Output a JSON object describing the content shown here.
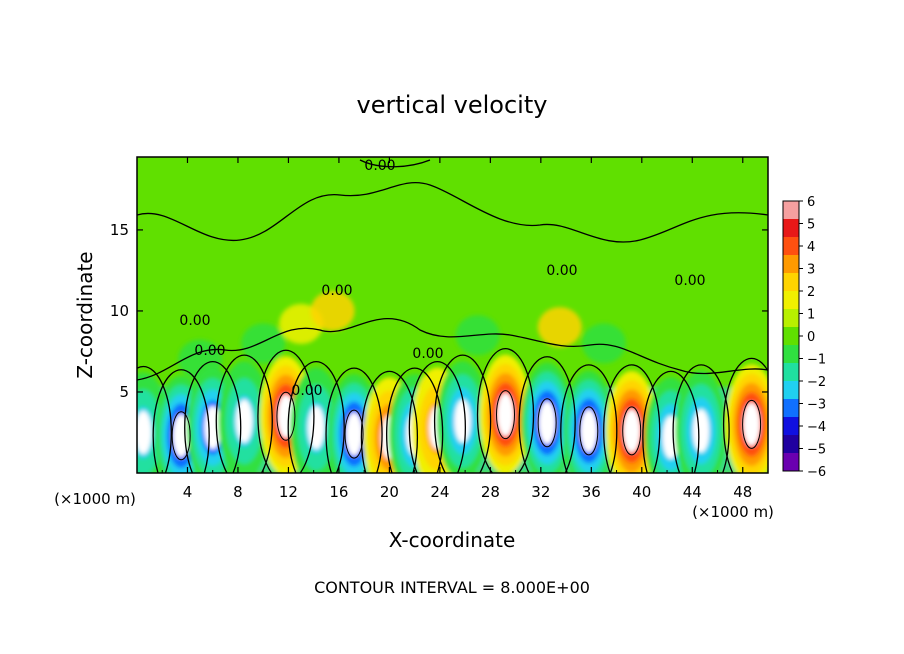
{
  "chart_data": {
    "type": "heatmap",
    "title": "vertical velocity",
    "xlabel": "X-coordinate",
    "ylabel": "Z-coordinate",
    "x_unit_label_left": "(×1000 m)",
    "x_unit_label_right": "(×1000 m)",
    "footer": "CONTOUR INTERVAL = 8.000E+00",
    "xlim": [
      0,
      50
    ],
    "ylim": [
      0,
      19.5
    ],
    "x_ticks": [
      4,
      8,
      12,
      16,
      20,
      24,
      28,
      32,
      36,
      40,
      44,
      48
    ],
    "x_tick_labels": [
      "4",
      "8",
      "12",
      "16",
      "20",
      "24",
      "28",
      "32",
      "36",
      "40",
      "44",
      "48"
    ],
    "y_ticks": [
      5,
      10,
      15
    ],
    "y_tick_labels": [
      "5",
      "10",
      "15"
    ],
    "colorbar": {
      "ticks": [
        6,
        5,
        4,
        3,
        2,
        1,
        0,
        -1,
        -2,
        -3,
        -4,
        -5,
        -6
      ],
      "tick_labels": [
        "6",
        "5",
        "4",
        "3",
        "2",
        "1",
        "0",
        "−1",
        "−2",
        "−3",
        "−4",
        "−5",
        "−6"
      ],
      "colors": [
        "#f6a0a0",
        "#e81818",
        "#ff5010",
        "#ff9a00",
        "#ffd400",
        "#f0f000",
        "#b8f000",
        "#60e000",
        "#30e040",
        "#20e0a0",
        "#20d0f0",
        "#1070ff",
        "#1010e0",
        "#2000a0",
        "#6a00b0"
      ]
    },
    "contour_labels": [
      "0.00",
      "0.00",
      "0.00",
      "0.00",
      "0.00",
      "0.00",
      "0.00",
      "0.00"
    ],
    "cells": [
      {
        "x": 0.5,
        "z": 2.5,
        "w": -3.5
      },
      {
        "x": 3.5,
        "z": 2.3,
        "w": -6
      },
      {
        "x": 6.0,
        "z": 2.8,
        "w": -5
      },
      {
        "x": 8.5,
        "z": 3.2,
        "w": -3
      },
      {
        "x": 11.8,
        "z": 3.5,
        "w": 6
      },
      {
        "x": 14.2,
        "z": 2.8,
        "w": -3
      },
      {
        "x": 17.2,
        "z": 2.4,
        "w": -6
      },
      {
        "x": 20.0,
        "z": 2.2,
        "w": 4
      },
      {
        "x": 22.0,
        "z": 2.4,
        "w": -4
      },
      {
        "x": 23.8,
        "z": 2.8,
        "w": 3
      },
      {
        "x": 25.8,
        "z": 3.2,
        "w": -4
      },
      {
        "x": 29.2,
        "z": 3.6,
        "w": 7
      },
      {
        "x": 32.5,
        "z": 3.1,
        "w": -6
      },
      {
        "x": 35.8,
        "z": 2.6,
        "w": -6
      },
      {
        "x": 39.2,
        "z": 2.6,
        "w": 6
      },
      {
        "x": 42.3,
        "z": 2.2,
        "w": -4
      },
      {
        "x": 44.7,
        "z": 2.6,
        "w": -4
      },
      {
        "x": 48.7,
        "z": 3.0,
        "w": 6.5
      },
      {
        "x": 13.0,
        "z": 9.2,
        "w": 1.8
      },
      {
        "x": 15.5,
        "z": 10.0,
        "w": 2.2
      },
      {
        "x": 33.5,
        "z": 9.0,
        "w": 2.5
      },
      {
        "x": 10.0,
        "z": 8.0,
        "w": -1.2
      },
      {
        "x": 27.0,
        "z": 8.5,
        "w": -1.2
      },
      {
        "x": 37.0,
        "z": 8.0,
        "w": -1.0
      },
      {
        "x": 5.0,
        "z": 7.0,
        "w": -1.3
      }
    ]
  }
}
